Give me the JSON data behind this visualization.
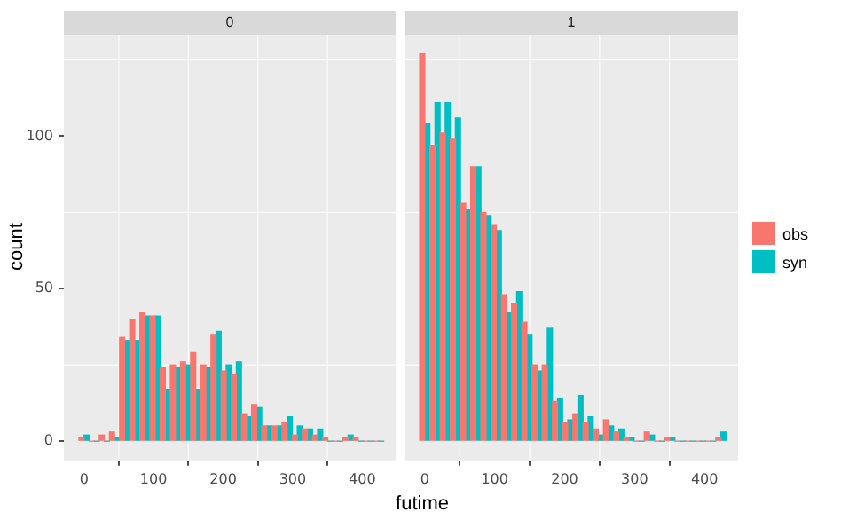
{
  "chart_data": [
    {
      "type": "histogram",
      "title": "0",
      "xlabel": "futime",
      "ylabel": "count",
      "bins": [
        -7.3,
        7.3,
        21.9,
        36.5,
        51.1,
        65.7,
        80.3,
        94.9,
        109.5,
        124.1,
        138.7,
        153.3,
        167.9,
        182.5,
        197.1,
        211.7,
        226.3,
        240.9,
        255.5,
        270.1,
        284.7,
        299.3,
        313.9,
        328.5,
        343.1,
        357.7,
        372.3,
        386.9,
        401.5,
        416.1,
        430.7
      ],
      "series": [
        {
          "name": "obs",
          "color": "#f8766d",
          "values": [
            1,
            0,
            2,
            3,
            34,
            40,
            42,
            41,
            24,
            25,
            26,
            29,
            25,
            35,
            23,
            22,
            9,
            12,
            5,
            5,
            6,
            2,
            4,
            2,
            1,
            0,
            1,
            1,
            0,
            0
          ]
        },
        {
          "name": "syn",
          "color": "#00bfc4",
          "values": [
            2,
            0,
            0,
            1,
            33,
            33,
            41,
            41,
            17,
            24,
            25,
            17,
            24,
            36,
            25,
            26,
            8,
            11,
            5,
            5,
            8,
            5,
            4,
            4,
            0,
            0,
            2,
            0,
            0,
            0
          ]
        }
      ],
      "xlim": [
        -29,
        448
      ],
      "xticks": [
        0,
        100,
        200,
        300,
        400
      ],
      "ylim": [
        -6.3,
        133
      ],
      "yticks": [
        0,
        50,
        100
      ],
      "grid": true,
      "legend": "right"
    },
    {
      "type": "histogram",
      "title": "1",
      "bins": [
        -7.3,
        7.3,
        21.9,
        36.5,
        51.1,
        65.7,
        80.3,
        94.9,
        109.5,
        124.1,
        138.7,
        153.3,
        167.9,
        182.5,
        197.1,
        211.7,
        226.3,
        240.9,
        255.5,
        270.1,
        284.7,
        299.3,
        313.9,
        328.5,
        343.1,
        357.7,
        372.3,
        386.9,
        401.5,
        416.1,
        430.7
      ],
      "series": [
        {
          "color": "#f8766d",
          "values": [
            127,
            97,
            101,
            99,
            78,
            90,
            75,
            71,
            48,
            45,
            39,
            25,
            25,
            13,
            6,
            9,
            6,
            4,
            7,
            3,
            1,
            0,
            3,
            0,
            1,
            0,
            0,
            0,
            0,
            1
          ]
        },
        {
          "color": "#00bfc4",
          "values": [
            104,
            111,
            111,
            106,
            76,
            90,
            74,
            69,
            42,
            49,
            35,
            23,
            37,
            14,
            7,
            15,
            8,
            2,
            5,
            4,
            1,
            0,
            2,
            0,
            1,
            0,
            0,
            0,
            0,
            3
          ]
        }
      ],
      "xlim": [
        -29,
        448
      ],
      "xticks": [
        0,
        100,
        200,
        300,
        400
      ],
      "ylim": [
        -6.3,
        133
      ],
      "yticks": [
        0,
        50,
        100
      ],
      "grid": true,
      "tick_labels": "x"
    }
  ]
}
